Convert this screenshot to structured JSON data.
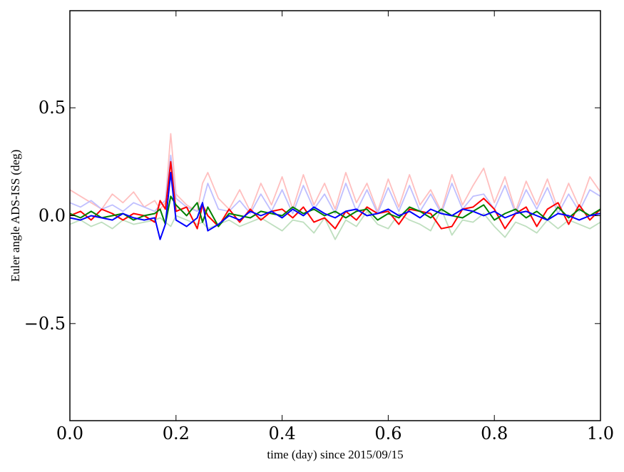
{
  "chart_data": {
    "type": "line",
    "title": "",
    "xlabel": "time (day) since 2015/09/15",
    "ylabel": "Euler angle ADS-ISS (deg)",
    "xlim": [
      0.0,
      1.0
    ],
    "ylim": [
      -0.95,
      0.95
    ],
    "grid": false,
    "legend": "none",
    "x_ticks": [
      0.0,
      0.2,
      0.4,
      0.6,
      0.8,
      1.0
    ],
    "x_tick_labels": [
      "0.0",
      "0.2",
      "0.4",
      "0.6",
      "0.8",
      "1.0"
    ],
    "y_ticks": [
      0.5,
      0.0,
      -0.5
    ],
    "y_tick_labels": [
      "0.5",
      "0.0",
      "−0.5"
    ],
    "x": [
      0.0,
      0.02,
      0.04,
      0.06,
      0.08,
      0.1,
      0.12,
      0.14,
      0.16,
      0.17,
      0.18,
      0.19,
      0.2,
      0.22,
      0.24,
      0.25,
      0.26,
      0.28,
      0.3,
      0.32,
      0.34,
      0.36,
      0.38,
      0.4,
      0.42,
      0.44,
      0.46,
      0.48,
      0.5,
      0.52,
      0.54,
      0.56,
      0.58,
      0.6,
      0.62,
      0.64,
      0.66,
      0.68,
      0.7,
      0.72,
      0.74,
      0.76,
      0.78,
      0.8,
      0.82,
      0.84,
      0.86,
      0.88,
      0.9,
      0.92,
      0.94,
      0.96,
      0.98,
      1.0
    ],
    "series": [
      {
        "color": "#ffbfbf",
        "width": 1.8,
        "values": [
          0.12,
          0.09,
          0.06,
          0.03,
          0.1,
          0.06,
          0.11,
          0.04,
          0.07,
          0.03,
          0.06,
          0.38,
          0.1,
          0.05,
          0.02,
          0.15,
          0.2,
          0.08,
          0.03,
          0.12,
          0.02,
          0.15,
          0.05,
          0.18,
          0.03,
          0.19,
          0.05,
          0.15,
          0.03,
          0.2,
          0.06,
          0.15,
          0.02,
          0.17,
          0.04,
          0.19,
          0.05,
          0.12,
          0.02,
          0.19,
          0.05,
          0.14,
          0.22,
          0.06,
          0.18,
          0.02,
          0.16,
          0.05,
          0.17,
          0.03,
          0.15,
          0.04,
          0.18,
          0.11
        ]
      },
      {
        "color": "#bfbfff",
        "width": 1.8,
        "values": [
          0.06,
          0.04,
          0.07,
          0.03,
          0.05,
          0.02,
          0.06,
          0.04,
          0.02,
          0.05,
          0.07,
          0.28,
          0.08,
          0.04,
          0.02,
          0.06,
          0.15,
          0.03,
          0.02,
          0.07,
          0.01,
          0.1,
          0.02,
          0.12,
          0.01,
          0.14,
          0.03,
          0.1,
          0.01,
          0.15,
          0.02,
          0.12,
          0.01,
          0.13,
          0.02,
          0.14,
          0.02,
          0.1,
          0.01,
          0.15,
          0.03,
          0.09,
          0.1,
          0.03,
          0.14,
          0.01,
          0.12,
          0.03,
          0.13,
          0.01,
          0.1,
          0.02,
          0.12,
          0.09
        ]
      },
      {
        "color": "#bfdfbf",
        "width": 1.8,
        "values": [
          -0.04,
          -0.02,
          -0.05,
          -0.03,
          -0.06,
          -0.02,
          -0.04,
          -0.03,
          -0.02,
          -0.01,
          -0.03,
          -0.05,
          0.0,
          -0.02,
          -0.04,
          -0.03,
          -0.06,
          -0.04,
          -0.02,
          -0.05,
          -0.03,
          -0.01,
          -0.04,
          -0.07,
          -0.02,
          -0.03,
          -0.08,
          -0.01,
          -0.11,
          -0.02,
          -0.05,
          0.02,
          -0.04,
          -0.06,
          0.01,
          -0.02,
          -0.04,
          -0.07,
          0.03,
          -0.09,
          -0.02,
          -0.03,
          0.01,
          -0.05,
          -0.1,
          -0.03,
          -0.05,
          -0.08,
          -0.02,
          -0.06,
          -0.02,
          -0.04,
          -0.06,
          -0.03
        ]
      },
      {
        "color": "#ff0000",
        "width": 2.0,
        "values": [
          0.0,
          0.02,
          -0.02,
          0.03,
          0.01,
          -0.02,
          0.01,
          0.0,
          -0.03,
          0.07,
          0.03,
          0.25,
          0.02,
          0.04,
          -0.06,
          0.05,
          0.0,
          -0.05,
          0.03,
          -0.03,
          0.03,
          -0.02,
          0.02,
          0.03,
          -0.01,
          0.04,
          -0.03,
          -0.01,
          -0.06,
          0.02,
          -0.02,
          0.04,
          0.01,
          0.02,
          -0.04,
          0.03,
          0.02,
          0.01,
          -0.06,
          -0.05,
          0.03,
          0.04,
          0.08,
          0.03,
          -0.06,
          0.01,
          0.04,
          -0.05,
          0.03,
          0.06,
          -0.04,
          0.05,
          -0.02,
          0.03
        ]
      },
      {
        "color": "#008000",
        "width": 2.0,
        "values": [
          0.01,
          -0.01,
          0.02,
          -0.01,
          0.0,
          0.01,
          -0.02,
          0.0,
          0.01,
          0.03,
          -0.04,
          0.09,
          0.05,
          0.0,
          0.06,
          -0.03,
          0.04,
          -0.05,
          0.01,
          0.0,
          -0.01,
          0.02,
          0.01,
          0.0,
          0.04,
          0.01,
          0.03,
          0.0,
          0.02,
          -0.01,
          0.02,
          0.03,
          -0.02,
          0.01,
          -0.01,
          0.04,
          0.02,
          -0.01,
          0.03,
          0.0,
          -0.01,
          0.02,
          0.05,
          -0.02,
          0.01,
          0.03,
          -0.01,
          0.02,
          -0.02,
          0.04,
          -0.01,
          0.03,
          0.0,
          0.03
        ]
      },
      {
        "color": "#0000ff",
        "width": 2.0,
        "values": [
          -0.01,
          -0.02,
          0.0,
          -0.01,
          -0.02,
          0.01,
          -0.01,
          -0.02,
          -0.01,
          -0.11,
          -0.04,
          0.2,
          -0.02,
          -0.05,
          -0.01,
          0.06,
          -0.07,
          -0.04,
          0.0,
          -0.02,
          0.02,
          0.0,
          0.02,
          -0.01,
          0.03,
          0.0,
          0.04,
          0.01,
          -0.01,
          0.02,
          0.03,
          0.0,
          0.01,
          0.03,
          0.0,
          0.02,
          -0.01,
          0.03,
          0.01,
          0.0,
          0.03,
          0.02,
          0.0,
          0.02,
          -0.01,
          0.01,
          0.02,
          0.0,
          -0.02,
          0.01,
          0.0,
          -0.02,
          0.0,
          0.01
        ]
      }
    ]
  }
}
